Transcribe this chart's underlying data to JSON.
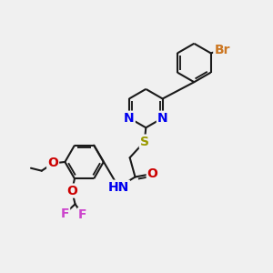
{
  "bg_color": "#f0f0f0",
  "bond_color": "#1a1a1a",
  "bond_width": 1.5,
  "atoms": {
    "Br": {
      "color": "#cc7722",
      "fontsize": 10
    },
    "N": {
      "color": "#0000ee",
      "fontsize": 10
    },
    "S": {
      "color": "#999900",
      "fontsize": 10
    },
    "O": {
      "color": "#cc0000",
      "fontsize": 10
    },
    "F": {
      "color": "#cc44cc",
      "fontsize": 10
    },
    "H": {
      "color": "#555555",
      "fontsize": 10
    },
    "C": {
      "color": "#1a1a1a",
      "fontsize": 10
    }
  },
  "xlim": [
    0,
    10
  ],
  "ylim": [
    0,
    10
  ]
}
